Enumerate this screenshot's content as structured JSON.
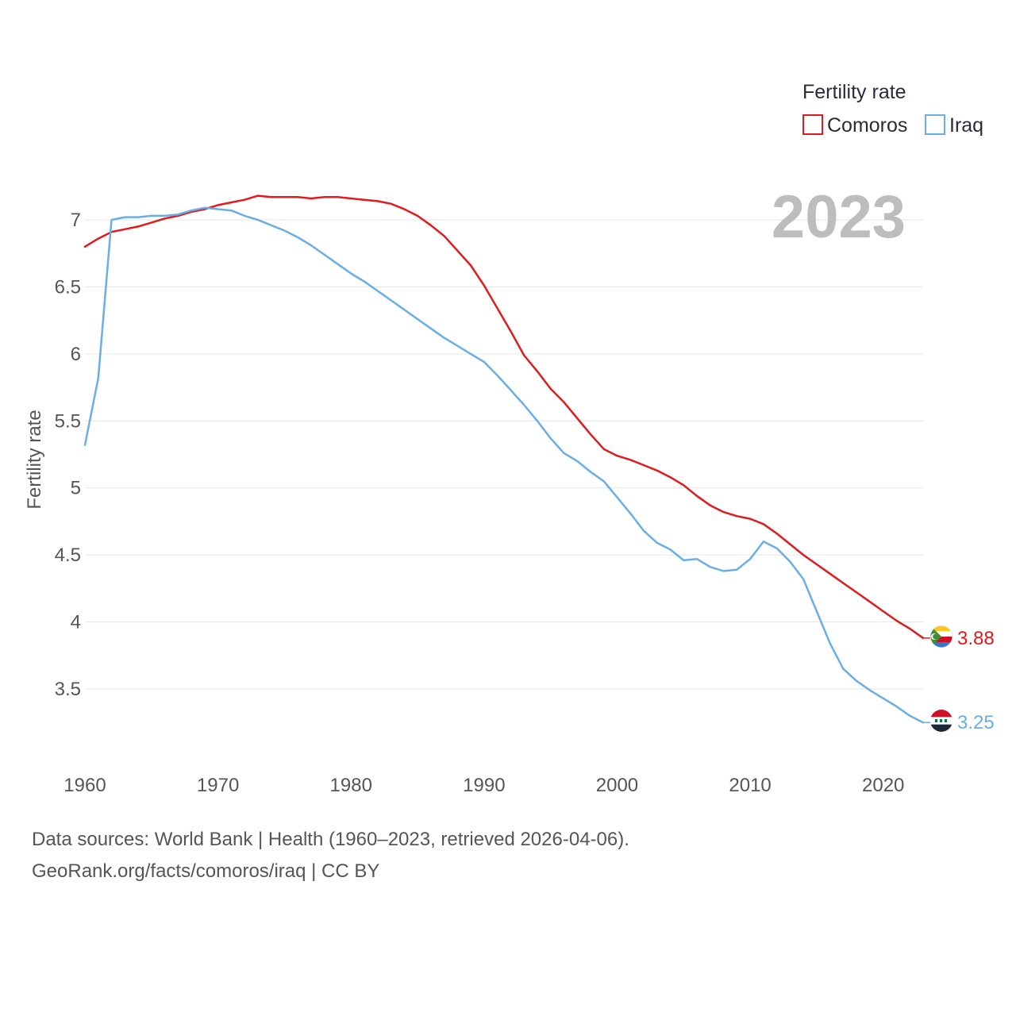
{
  "chart_data": {
    "type": "line",
    "ylabel": "Fertility rate",
    "xlabel": "",
    "xlim": [
      1960,
      2023
    ],
    "ylim": [
      3.0,
      7.3
    ],
    "xticks": [
      1960,
      1970,
      1980,
      1990,
      2000,
      2010,
      2020
    ],
    "yticks": [
      3.5,
      4,
      4.5,
      5,
      5.5,
      6,
      6.5,
      7
    ],
    "ytick_labels": [
      "3.5",
      "4",
      "4.5",
      "5",
      "5.5",
      "6",
      "6.5",
      "7"
    ],
    "legend_title": "Fertility rate",
    "legend_position": "top-right",
    "current_year_label": "2023",
    "x": [
      1960,
      1961,
      1962,
      1963,
      1964,
      1965,
      1966,
      1967,
      1968,
      1969,
      1970,
      1971,
      1972,
      1973,
      1974,
      1975,
      1976,
      1977,
      1978,
      1979,
      1980,
      1981,
      1982,
      1983,
      1984,
      1985,
      1986,
      1987,
      1988,
      1989,
      1990,
      1991,
      1992,
      1993,
      1994,
      1995,
      1996,
      1997,
      1998,
      1999,
      2000,
      2001,
      2002,
      2003,
      2004,
      2005,
      2006,
      2007,
      2008,
      2009,
      2010,
      2011,
      2012,
      2013,
      2014,
      2015,
      2016,
      2017,
      2018,
      2019,
      2020,
      2021,
      2022,
      2023
    ],
    "series": [
      {
        "name": "Comoros",
        "color": "#e31a1c",
        "end_label": "3.88",
        "values": [
          6.8,
          6.86,
          6.91,
          6.93,
          6.95,
          6.98,
          7.01,
          7.03,
          7.06,
          7.08,
          7.11,
          7.13,
          7.15,
          7.18,
          7.17,
          7.17,
          7.17,
          7.16,
          7.17,
          7.17,
          7.16,
          7.15,
          7.14,
          7.12,
          7.08,
          7.03,
          6.96,
          6.88,
          6.77,
          6.66,
          6.51,
          6.34,
          6.17,
          5.99,
          5.87,
          5.74,
          5.64,
          5.52,
          5.4,
          5.29,
          5.24,
          5.21,
          5.17,
          5.13,
          5.08,
          5.02,
          4.94,
          4.87,
          4.82,
          4.79,
          4.77,
          4.73,
          4.66,
          4.58,
          4.5,
          4.43,
          4.36,
          4.29,
          4.22,
          4.15,
          4.08,
          4.01,
          3.95,
          3.88
        ]
      },
      {
        "name": "Iraq",
        "color": "#6aaee6",
        "end_label": "3.25",
        "values": [
          5.32,
          5.82,
          7.0,
          7.02,
          7.02,
          7.03,
          7.03,
          7.04,
          7.07,
          7.09,
          7.08,
          7.07,
          7.03,
          7.0,
          6.96,
          6.92,
          6.87,
          6.81,
          6.74,
          6.67,
          6.6,
          6.54,
          6.47,
          6.4,
          6.33,
          6.26,
          6.19,
          6.12,
          6.06,
          6.0,
          5.94,
          5.84,
          5.73,
          5.62,
          5.5,
          5.37,
          5.26,
          5.2,
          5.12,
          5.05,
          4.93,
          4.81,
          4.68,
          4.59,
          4.54,
          4.46,
          4.47,
          4.41,
          4.38,
          4.39,
          4.47,
          4.6,
          4.55,
          4.45,
          4.32,
          4.08,
          3.84,
          3.65,
          3.56,
          3.49,
          3.43,
          3.37,
          3.3,
          3.25
        ]
      }
    ]
  },
  "footer": {
    "sources": "Data sources: World Bank | Health (1960–2023, retrieved 2026-04-06).",
    "attribution": "GeoRank.org/facts/comoros/iraq | CC BY"
  }
}
